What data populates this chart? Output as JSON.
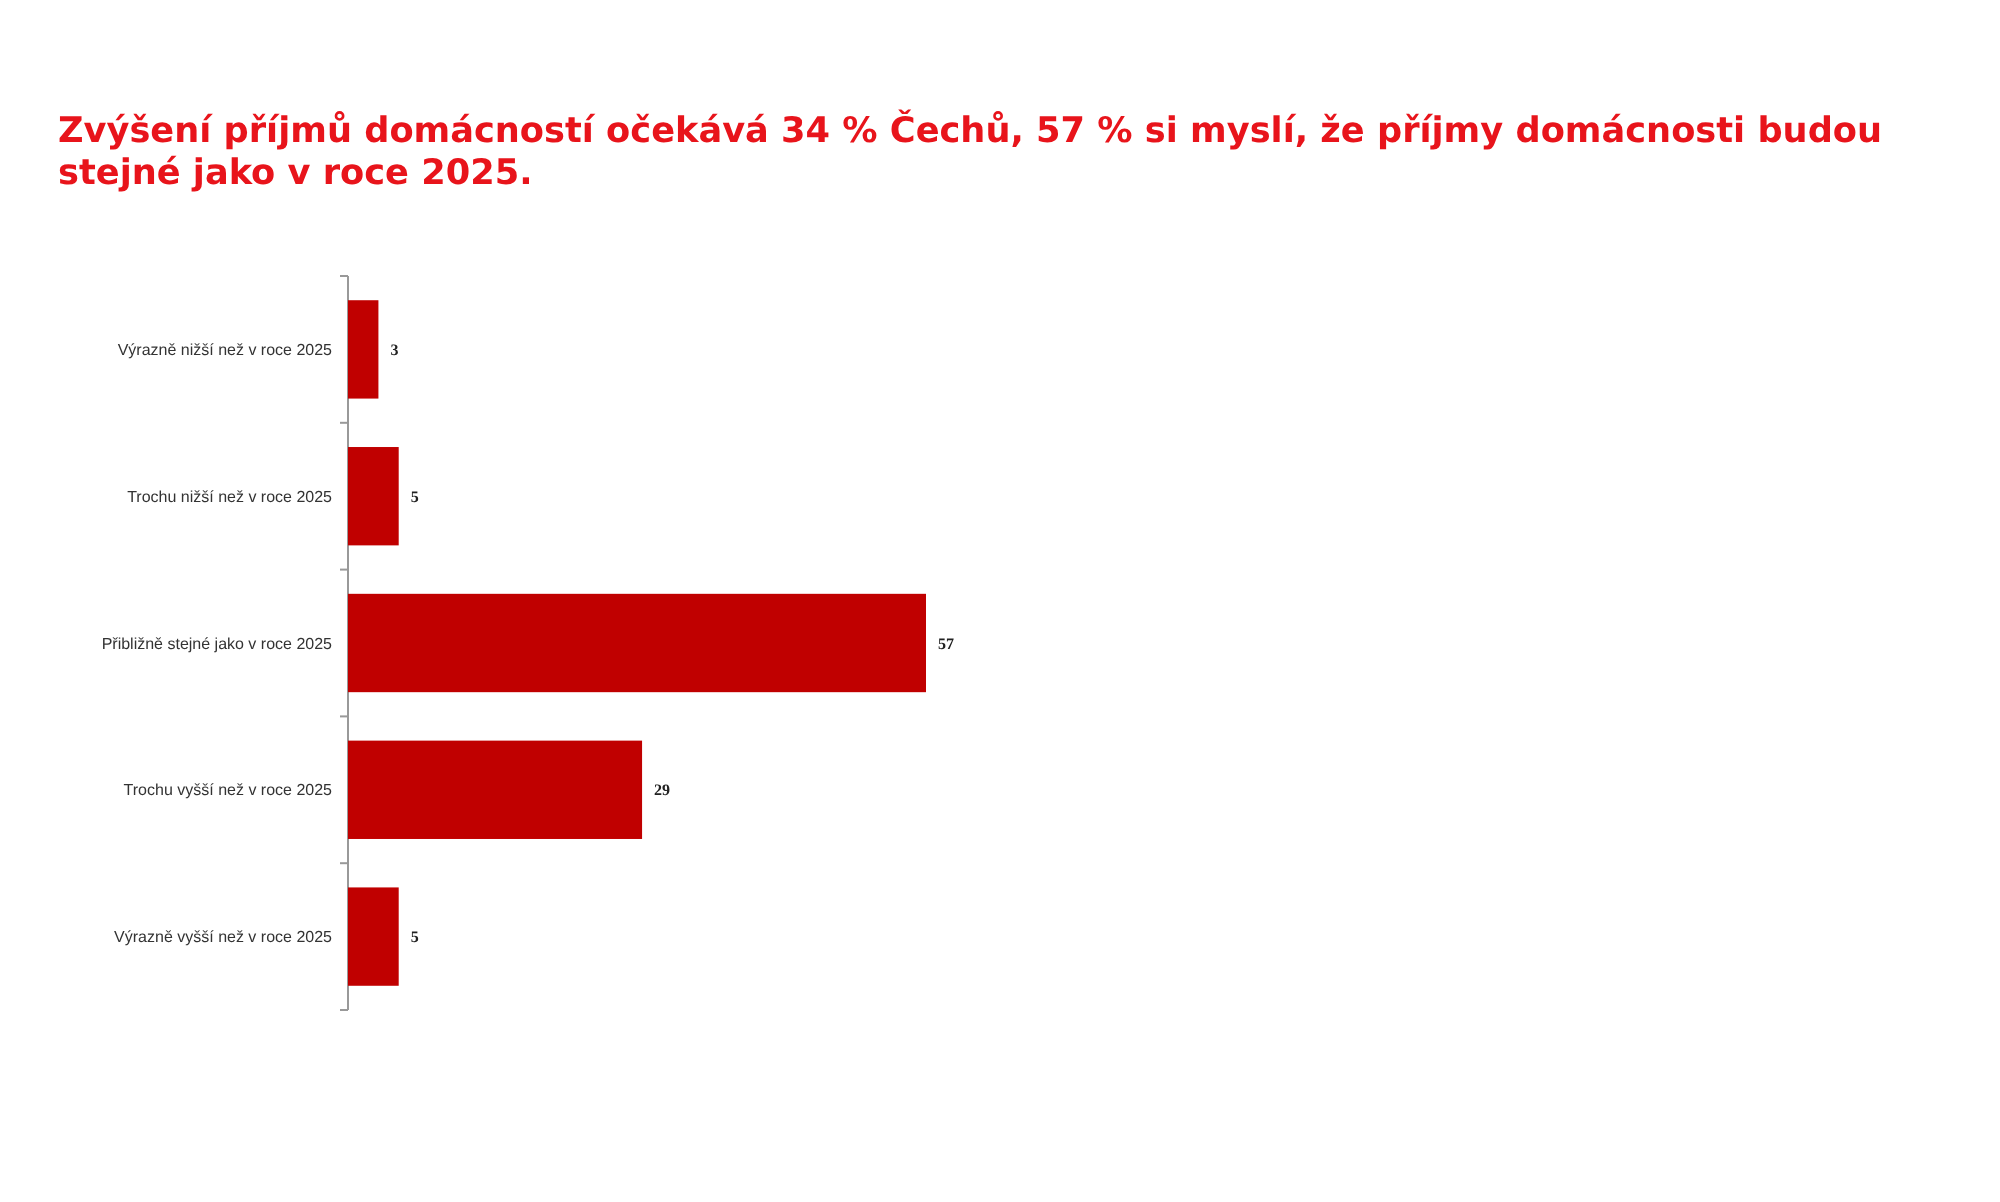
{
  "chart_data": {
    "type": "bar",
    "orientation": "horizontal",
    "title": "Zvýšení příjmů domácností očekává 34 % Čechů, 57 % si myslí, že příjmy domácnosti budou stejné jako v roce 2025.",
    "categories": [
      "Výrazně nižší než v roce 2025",
      "Trochu nižší než v roce 2025",
      "Přibližně stejné jako v roce 2025",
      "Trochu vyšší než v roce 2025",
      "Výrazně vyšší než v roce 2025"
    ],
    "values": [
      3,
      5,
      57,
      29,
      5
    ],
    "color": "#c00000",
    "data_labels": true
  }
}
